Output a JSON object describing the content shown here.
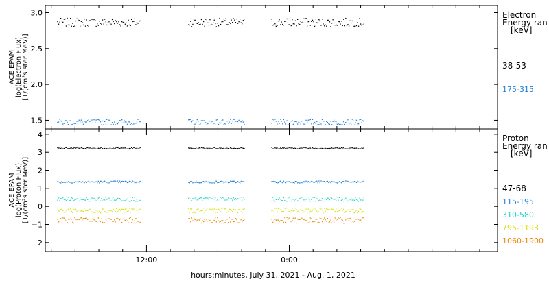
{
  "xlabel": "hours:minutes, July 31, 2021 - Aug.  1, 2021",
  "x_ticks": [
    "12:00",
    "0:00"
  ],
  "x_tick_hours": [
    12,
    24
  ],
  "x_range_hours": [
    3.5,
    41.5
  ],
  "chart_data": [
    {
      "type": "scatter",
      "ylabel_lines": [
        "ACE EPAM",
        "log(Electron Flux)",
        "[1/(cm²s ster MeV)]"
      ],
      "ylim": [
        1.38,
        3.1
      ],
      "yticks": [
        1.5,
        2.0,
        2.5,
        3.0
      ],
      "ytick_labels": [
        "1.5",
        "2.0",
        "2.5",
        "3.0"
      ],
      "legend_lines": [
        "Electron",
        "Energy ran",
        "[keV]"
      ],
      "segments_hours": [
        [
          4.5,
          11.5
        ],
        [
          15.5,
          20.2
        ],
        [
          22.5,
          30.3
        ]
      ],
      "series": [
        {
          "name": "38-53",
          "color": "#000000",
          "mean": 2.87,
          "noise": 0.06
        },
        {
          "name": "175-315",
          "color": "#1f7fd6",
          "mean": 1.48,
          "noise": 0.04
        }
      ]
    },
    {
      "type": "scatter",
      "ylabel_lines": [
        "ACE EPAM",
        "log(Proton Flux)",
        "[1/(cm²s ster MeV)]"
      ],
      "ylim": [
        -2.5,
        4.3
      ],
      "yticks": [
        -2,
        -1,
        0,
        1,
        2,
        3,
        4
      ],
      "ytick_labels": [
        "−2",
        "−1",
        "0",
        "1",
        "2",
        "3",
        "4"
      ],
      "legend_lines": [
        "Proton",
        "Energy ran",
        "[keV]"
      ],
      "segments_hours": [
        [
          4.5,
          11.5
        ],
        [
          15.5,
          20.2
        ],
        [
          22.5,
          30.3
        ]
      ],
      "series": [
        {
          "name": "47-68",
          "color": "#000000",
          "mean": 3.25,
          "noise": 0.04
        },
        {
          "name": "115-195",
          "color": "#1f7fd6",
          "mean": 1.38,
          "noise": 0.06
        },
        {
          "name": "310-580",
          "color": "#22d3c8",
          "mean": 0.42,
          "noise": 0.12
        },
        {
          "name": "795-1193",
          "color": "#d4e00a",
          "mean": -0.2,
          "noise": 0.14
        },
        {
          "name": "1060-1900",
          "color": "#e8890c",
          "mean": -0.75,
          "noise": 0.16
        }
      ]
    }
  ]
}
